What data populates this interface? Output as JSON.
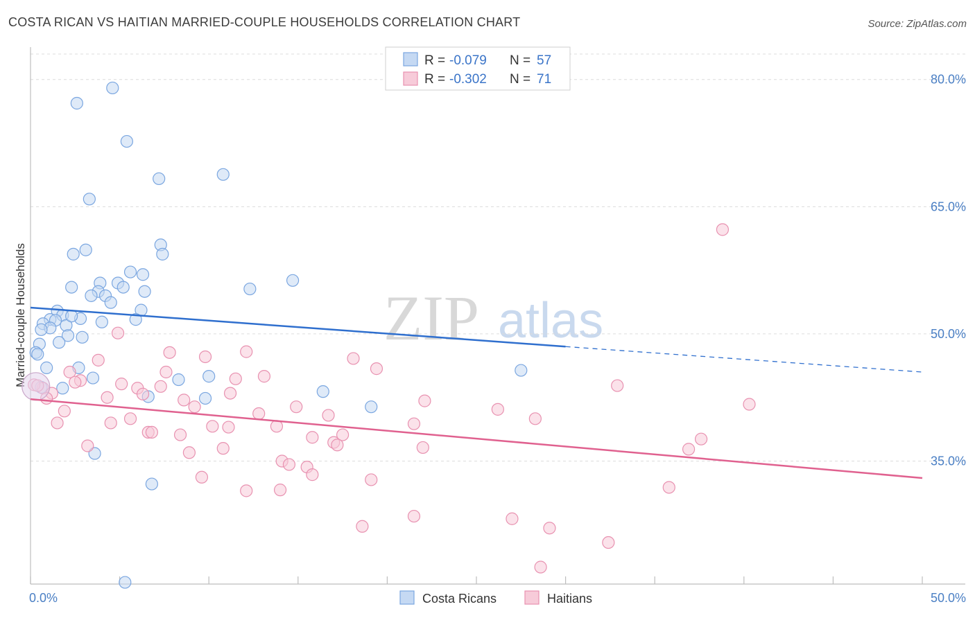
{
  "chart_data": {
    "type": "scatter",
    "title": "COSTA RICAN VS HAITIAN MARRIED-COUPLE HOUSEHOLDS CORRELATION CHART",
    "source": "Source: ZipAtlas.com",
    "ylabel": "Married-couple Households",
    "xlim": [
      0,
      50
    ],
    "ylim": [
      20.5,
      83
    ],
    "y_ticks": [
      {
        "value": 80,
        "label": "80.0%"
      },
      {
        "value": 65,
        "label": "65.0%"
      },
      {
        "value": 50,
        "label": "50.0%"
      },
      {
        "value": 35,
        "label": "35.0%"
      }
    ],
    "x_tick_labels": {
      "left": "0.0%",
      "right": "50.0%"
    },
    "watermark": {
      "part1": "ZIP",
      "part2": "atlas"
    },
    "legend": {
      "rows": [
        {
          "r_label": "R =",
          "r_value": "-0.079",
          "n_label": "N =",
          "n_value": "57"
        },
        {
          "r_label": "R =",
          "r_value": "-0.302",
          "n_label": "N =",
          "n_value": "71"
        }
      ]
    },
    "series": [
      {
        "name": "Costa Ricans",
        "color": "#7aa6e0",
        "fill": "#c5d9f3",
        "line_color": "#2f6fce",
        "trend": {
          "x0": 0,
          "y0": 53.1,
          "x1": 30,
          "y1": 48.5,
          "dash_x1": 50,
          "dash_y1": 45.5
        },
        "points": [
          [
            4.6,
            79.0
          ],
          [
            2.6,
            77.2
          ],
          [
            5.4,
            72.7
          ],
          [
            7.2,
            68.3
          ],
          [
            10.8,
            68.8
          ],
          [
            3.3,
            65.9
          ],
          [
            7.3,
            60.5
          ],
          [
            3.1,
            59.9
          ],
          [
            2.4,
            59.4
          ],
          [
            7.4,
            59.4
          ],
          [
            5.6,
            57.3
          ],
          [
            6.3,
            57.0
          ],
          [
            14.7,
            56.3
          ],
          [
            3.9,
            56.0
          ],
          [
            4.9,
            56.0
          ],
          [
            2.3,
            55.5
          ],
          [
            5.2,
            55.5
          ],
          [
            12.3,
            55.3
          ],
          [
            3.8,
            55.0
          ],
          [
            6.4,
            55.0
          ],
          [
            3.4,
            54.5
          ],
          [
            4.2,
            54.5
          ],
          [
            4.5,
            53.7
          ],
          [
            6.2,
            52.8
          ],
          [
            1.5,
            52.7
          ],
          [
            1.8,
            52.2
          ],
          [
            2.8,
            51.8
          ],
          [
            1.1,
            51.7
          ],
          [
            1.4,
            51.6
          ],
          [
            5.9,
            51.7
          ],
          [
            4.0,
            51.4
          ],
          [
            0.7,
            51.2
          ],
          [
            2.0,
            51.0
          ],
          [
            1.1,
            50.7
          ],
          [
            0.6,
            50.5
          ],
          [
            2.1,
            49.8
          ],
          [
            2.9,
            49.6
          ],
          [
            1.6,
            49.0
          ],
          [
            0.5,
            48.8
          ],
          [
            0.3,
            47.8
          ],
          [
            0.4,
            47.6
          ],
          [
            0.9,
            46.0
          ],
          [
            2.7,
            46.0
          ],
          [
            27.5,
            45.7
          ],
          [
            10.0,
            45.0
          ],
          [
            3.5,
            44.8
          ],
          [
            8.3,
            44.6
          ],
          [
            1.8,
            43.6
          ],
          [
            16.4,
            43.2
          ],
          [
            6.6,
            42.6
          ],
          [
            9.8,
            42.4
          ],
          [
            19.1,
            41.4
          ],
          [
            3.6,
            35.9
          ],
          [
            6.8,
            32.3
          ],
          [
            5.3,
            20.7
          ],
          [
            0.6,
            43.7
          ],
          [
            2.3,
            52.1
          ]
        ]
      },
      {
        "name": "Haitians",
        "color": "#e891b0",
        "fill": "#f7cbd9",
        "line_color": "#e0618f",
        "trend": {
          "x0": 0,
          "y0": 42.3,
          "x1": 50,
          "y1": 33.0
        },
        "points": [
          [
            38.8,
            62.3
          ],
          [
            4.9,
            50.1
          ],
          [
            7.8,
            47.8
          ],
          [
            12.1,
            47.9
          ],
          [
            9.8,
            47.3
          ],
          [
            18.1,
            47.1
          ],
          [
            3.8,
            46.9
          ],
          [
            19.4,
            45.9
          ],
          [
            2.2,
            45.5
          ],
          [
            7.6,
            45.5
          ],
          [
            13.1,
            45.0
          ],
          [
            11.5,
            44.7
          ],
          [
            2.8,
            44.5
          ],
          [
            2.5,
            44.3
          ],
          [
            5.1,
            44.1
          ],
          [
            32.9,
            43.9
          ],
          [
            6.0,
            43.6
          ],
          [
            7.3,
            43.8
          ],
          [
            0.7,
            43.6
          ],
          [
            1.2,
            43.0
          ],
          [
            11.2,
            43.0
          ],
          [
            6.3,
            42.9
          ],
          [
            4.3,
            42.5
          ],
          [
            0.9,
            42.4
          ],
          [
            8.6,
            42.2
          ],
          [
            22.1,
            42.1
          ],
          [
            40.3,
            41.7
          ],
          [
            9.2,
            41.4
          ],
          [
            14.9,
            41.4
          ],
          [
            26.2,
            41.1
          ],
          [
            1.9,
            40.9
          ],
          [
            12.8,
            40.6
          ],
          [
            16.7,
            40.4
          ],
          [
            5.6,
            40.0
          ],
          [
            28.3,
            40.0
          ],
          [
            1.5,
            39.5
          ],
          [
            4.5,
            39.5
          ],
          [
            21.5,
            39.4
          ],
          [
            10.2,
            39.1
          ],
          [
            11.1,
            39.0
          ],
          [
            13.8,
            39.1
          ],
          [
            6.6,
            38.4
          ],
          [
            6.8,
            38.4
          ],
          [
            8.4,
            38.1
          ],
          [
            15.8,
            37.8
          ],
          [
            17.5,
            38.1
          ],
          [
            37.6,
            37.6
          ],
          [
            17.0,
            37.2
          ],
          [
            17.2,
            36.9
          ],
          [
            3.2,
            36.8
          ],
          [
            10.8,
            36.5
          ],
          [
            22.0,
            36.6
          ],
          [
            36.9,
            36.4
          ],
          [
            8.9,
            36.0
          ],
          [
            14.1,
            35.0
          ],
          [
            14.5,
            34.6
          ],
          [
            15.5,
            34.3
          ],
          [
            15.8,
            33.4
          ],
          [
            9.6,
            33.1
          ],
          [
            19.1,
            32.8
          ],
          [
            35.8,
            31.9
          ],
          [
            12.1,
            31.5
          ],
          [
            14.0,
            31.6
          ],
          [
            21.5,
            28.5
          ],
          [
            27.0,
            28.2
          ],
          [
            18.6,
            27.3
          ],
          [
            29.1,
            27.1
          ],
          [
            32.4,
            25.4
          ],
          [
            28.6,
            22.5
          ],
          [
            0.2,
            44.0
          ],
          [
            0.4,
            43.9
          ]
        ]
      }
    ]
  }
}
